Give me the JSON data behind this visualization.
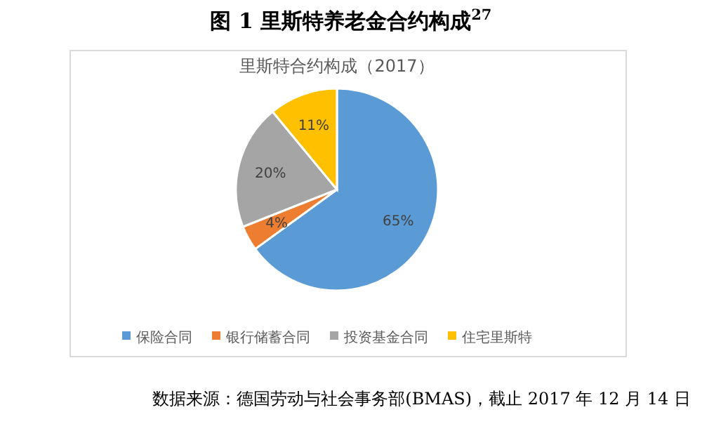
{
  "chart_data": {
    "type": "pie",
    "title": "图 1    里斯特养老金合约构成$^{27}$",
    "subtitle": "里斯特合约构成（2017）",
    "categories": [
      "保险合同",
      "银行储蓄合同",
      "投资基金合同",
      "住宅里斯特"
    ],
    "values": [
      65,
      4,
      20,
      11
    ],
    "colors": [
      "#5b9bd5",
      "#ed7d31",
      "#a5a5a5",
      "#ffc000"
    ],
    "value_labels": [
      "65%",
      "4%",
      "20%",
      "11%"
    ],
    "legend": "bottom",
    "annotations": [
      "数据来源：德国劳动与社会事务部(BMAS)，截止 2017 年 12 月 14 日"
    ]
  }
}
